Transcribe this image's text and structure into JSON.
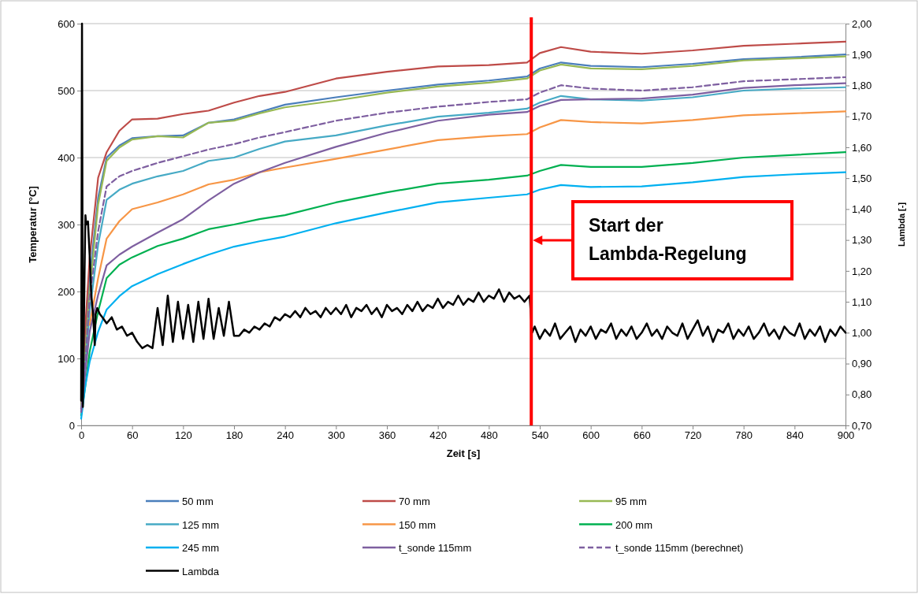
{
  "chart_data": {
    "type": "line",
    "xlabel": "Zeit [s]",
    "ylabel": "Temperatur [°C]",
    "y2label": "Lambda [-]",
    "xlim": [
      0,
      900
    ],
    "xticks": [
      0,
      60,
      120,
      180,
      240,
      300,
      360,
      420,
      480,
      540,
      600,
      660,
      720,
      780,
      840,
      900
    ],
    "ylim": [
      0,
      600
    ],
    "yticks": [
      0,
      100,
      200,
      300,
      400,
      500,
      600
    ],
    "y2lim": [
      0.7,
      2.0
    ],
    "y2ticks": [
      {
        "value": 0.7,
        "label": "0,70"
      },
      {
        "value": 0.8,
        "label": "0,80"
      },
      {
        "value": 0.9,
        "label": "0,90"
      },
      {
        "value": 1.0,
        "label": "1,00"
      },
      {
        "value": 1.1,
        "label": "1,10"
      },
      {
        "value": 1.2,
        "label": "1,20"
      },
      {
        "value": 1.3,
        "label": "1,30"
      },
      {
        "value": 1.4,
        "label": "1,40"
      },
      {
        "value": 1.5,
        "label": "1,50"
      },
      {
        "value": 1.6,
        "label": "1,60"
      },
      {
        "value": 1.7,
        "label": "1,70"
      },
      {
        "value": 1.8,
        "label": "1,80"
      },
      {
        "value": 1.9,
        "label": "1,90"
      },
      {
        "value": 2.0,
        "label": "2,00"
      }
    ],
    "grid": "y",
    "legend": "bottom",
    "marker": "none",
    "x": [
      0,
      5,
      10,
      20,
      30,
      45,
      60,
      90,
      120,
      150,
      180,
      210,
      240,
      300,
      360,
      420,
      480,
      525,
      540,
      565,
      600,
      660,
      720,
      780,
      840,
      900
    ],
    "series": [
      {
        "name": "50 mm",
        "color": "#4a7ebb",
        "values": [
          25,
          120,
          220,
          340,
          400,
          418,
          429,
          432,
          433,
          452,
          457,
          468,
          479,
          490,
          500,
          509,
          515,
          521,
          533,
          542,
          537,
          535,
          540,
          547,
          550,
          554
        ]
      },
      {
        "name": "70 mm",
        "color": "#be4b48",
        "values": [
          25,
          150,
          250,
          370,
          408,
          440,
          457,
          458,
          465,
          470,
          482,
          492,
          498,
          518,
          528,
          536,
          538,
          542,
          556,
          565,
          558,
          555,
          560,
          567,
          570,
          573
        ]
      },
      {
        "name": "95 mm",
        "color": "#98b954",
        "values": [
          25,
          110,
          200,
          330,
          395,
          415,
          427,
          432,
          430,
          452,
          455,
          466,
          475,
          485,
          497,
          506,
          512,
          518,
          530,
          539,
          533,
          532,
          537,
          545,
          548,
          551
        ]
      },
      {
        "name": "125 mm",
        "color": "#46aac5",
        "values": [
          20,
          90,
          170,
          270,
          337,
          352,
          361,
          372,
          380,
          395,
          400,
          413,
          424,
          433,
          448,
          461,
          467,
          473,
          482,
          492,
          487,
          485,
          490,
          500,
          503,
          505
        ]
      },
      {
        "name": "150 mm",
        "color": "#f79646",
        "values": [
          null,
          null,
          150,
          220,
          279,
          305,
          323,
          333,
          345,
          360,
          367,
          378,
          385,
          398,
          412,
          426,
          432,
          435,
          445,
          456,
          453,
          451,
          456,
          463,
          466,
          469
        ]
      },
      {
        "name": "200 mm",
        "color": "#00b050",
        "values": [
          15,
          60,
          110,
          170,
          220,
          240,
          251,
          268,
          279,
          293,
          300,
          308,
          314,
          333,
          348,
          361,
          367,
          373,
          380,
          389,
          386,
          386,
          392,
          400,
          404,
          408
        ]
      },
      {
        "name": "245 mm",
        "color": "#00b0f0",
        "values": [
          10,
          60,
          95,
          140,
          173,
          193,
          208,
          226,
          241,
          255,
          267,
          275,
          282,
          302,
          318,
          333,
          340,
          345,
          352,
          359,
          356,
          357,
          363,
          371,
          375,
          378
        ]
      },
      {
        "name": "t_sonde 115mm",
        "color": "#7e5fa0",
        "values": [
          20,
          80,
          140,
          195,
          239,
          255,
          267,
          288,
          308,
          336,
          361,
          378,
          392,
          416,
          437,
          455,
          464,
          468,
          477,
          486,
          487,
          488,
          494,
          504,
          508,
          511
        ]
      },
      {
        "name": "t_sonde 115mm (berechnet)",
        "color": "#7e5fa0",
        "line_style": "dashed",
        "values": [
          20,
          100,
          190,
          290,
          357,
          372,
          380,
          392,
          402,
          412,
          420,
          430,
          438,
          455,
          467,
          476,
          483,
          487,
          497,
          508,
          503,
          500,
          505,
          514,
          517,
          520
        ]
      },
      {
        "name": "Lambda",
        "color": "#000000",
        "axis": "y2",
        "x": [
          0,
          1,
          2,
          4,
          5,
          6,
          8,
          10,
          12,
          14,
          16,
          17,
          19,
          22,
          25,
          30,
          36,
          42,
          48,
          54,
          60,
          66,
          72,
          78,
          84,
          90,
          96,
          102,
          108,
          114,
          120,
          126,
          132,
          138,
          144,
          150,
          156,
          162,
          168,
          174,
          180,
          186,
          192,
          198,
          204,
          210,
          216,
          222,
          228,
          234,
          240,
          246,
          252,
          258,
          264,
          270,
          276,
          282,
          288,
          294,
          300,
          306,
          312,
          318,
          324,
          330,
          336,
          342,
          348,
          354,
          360,
          366,
          372,
          378,
          384,
          390,
          396,
          402,
          408,
          414,
          420,
          426,
          432,
          438,
          444,
          450,
          456,
          462,
          468,
          474,
          480,
          486,
          492,
          498,
          504,
          510,
          516,
          522,
          528,
          531,
          534,
          540,
          546,
          552,
          558,
          564,
          570,
          576,
          582,
          588,
          594,
          600,
          606,
          612,
          618,
          624,
          630,
          636,
          642,
          648,
          654,
          660,
          666,
          672,
          678,
          684,
          690,
          696,
          702,
          708,
          714,
          720,
          726,
          732,
          738,
          744,
          750,
          756,
          762,
          768,
          774,
          780,
          786,
          792,
          798,
          804,
          810,
          816,
          822,
          828,
          834,
          840,
          846,
          852,
          858,
          864,
          870,
          876,
          882,
          888,
          894,
          900
        ],
        "values": [
          0.78,
          2.0,
          0.76,
          1.2,
          1.38,
          1.35,
          1.36,
          1.25,
          1.12,
          1.06,
          0.96,
          1.06,
          1.08,
          1.06,
          1.05,
          1.03,
          1.05,
          1.01,
          1.02,
          0.99,
          1.0,
          0.97,
          0.95,
          0.96,
          0.95,
          1.08,
          0.96,
          1.12,
          0.97,
          1.1,
          0.98,
          1.09,
          0.97,
          1.1,
          0.98,
          1.11,
          0.98,
          1.08,
          0.99,
          1.1,
          0.99,
          0.99,
          1.01,
          1.0,
          1.02,
          1.01,
          1.03,
          1.02,
          1.05,
          1.04,
          1.06,
          1.05,
          1.07,
          1.05,
          1.08,
          1.06,
          1.07,
          1.05,
          1.08,
          1.06,
          1.08,
          1.06,
          1.09,
          1.05,
          1.08,
          1.07,
          1.09,
          1.06,
          1.08,
          1.05,
          1.09,
          1.07,
          1.08,
          1.06,
          1.09,
          1.07,
          1.1,
          1.07,
          1.09,
          1.08,
          1.11,
          1.08,
          1.1,
          1.09,
          1.12,
          1.09,
          1.11,
          1.1,
          1.13,
          1.1,
          1.12,
          1.11,
          1.14,
          1.1,
          1.13,
          1.11,
          1.12,
          1.1,
          1.12,
          1.0,
          1.02,
          0.98,
          1.01,
          0.99,
          1.03,
          0.98,
          1.0,
          1.02,
          0.97,
          1.01,
          0.99,
          1.02,
          0.98,
          1.01,
          1.0,
          1.03,
          0.98,
          1.01,
          0.99,
          1.02,
          0.98,
          1.0,
          1.03,
          0.99,
          1.01,
          0.98,
          1.02,
          1.0,
          0.99,
          1.03,
          0.98,
          1.01,
          1.04,
          0.99,
          1.02,
          0.97,
          1.01,
          1.0,
          1.03,
          0.98,
          1.01,
          0.99,
          1.02,
          0.98,
          1.0,
          1.03,
          0.99,
          1.01,
          0.98,
          1.02,
          1.0,
          0.99,
          1.03,
          0.98,
          1.01,
          0.99,
          1.02,
          0.97,
          1.01,
          0.99,
          1.02,
          1.0
        ]
      }
    ],
    "ref_lines": [
      {
        "axis": "x",
        "value": 530,
        "label": "Start der Lambda-Regelung",
        "color": "#ff0000"
      }
    ]
  }
}
